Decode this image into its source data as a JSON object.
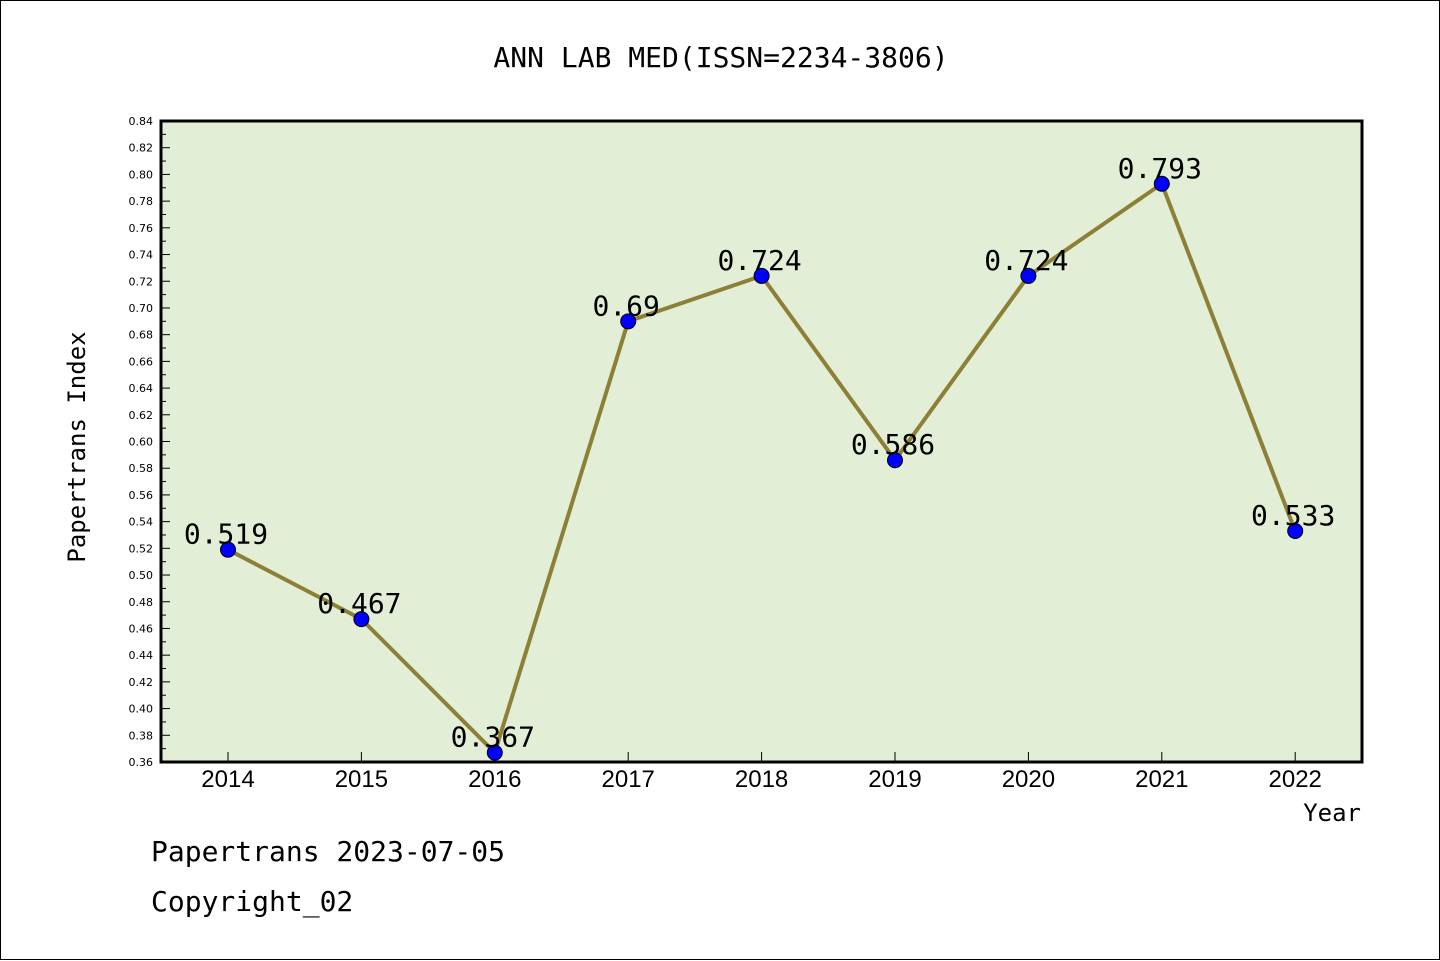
{
  "chart_data": {
    "type": "line",
    "title": "ANN LAB MED(ISSN=2234-3806)",
    "xlabel": "Year",
    "ylabel": "Papertrans Index",
    "categories": [
      "2014",
      "2015",
      "2016",
      "2017",
      "2018",
      "2019",
      "2020",
      "2021",
      "2022"
    ],
    "values": [
      0.519,
      0.467,
      0.367,
      0.69,
      0.724,
      0.586,
      0.724,
      0.793,
      0.533
    ],
    "data_labels": [
      "0.519",
      "0.467",
      "0.367",
      "0.69",
      "0.724",
      "0.586",
      "0.724",
      "0.793",
      "0.533"
    ],
    "ylim": [
      0.36,
      0.84
    ],
    "yticks": [
      "0.36",
      "0.38",
      "0.40",
      "0.42",
      "0.44",
      "0.46",
      "0.48",
      "0.50",
      "0.52",
      "0.54",
      "0.56",
      "0.58",
      "0.60",
      "0.62",
      "0.64",
      "0.66",
      "0.68",
      "0.70",
      "0.72",
      "0.74",
      "0.76",
      "0.78",
      "0.80",
      "0.82",
      "0.84"
    ],
    "grid": false,
    "colors": {
      "plot_background": "#e2efd6",
      "line": "#8e7f36",
      "marker": "#0000ff"
    }
  },
  "footer": {
    "line1": "Papertrans 2023-07-05",
    "line2": "Copyright_02"
  }
}
